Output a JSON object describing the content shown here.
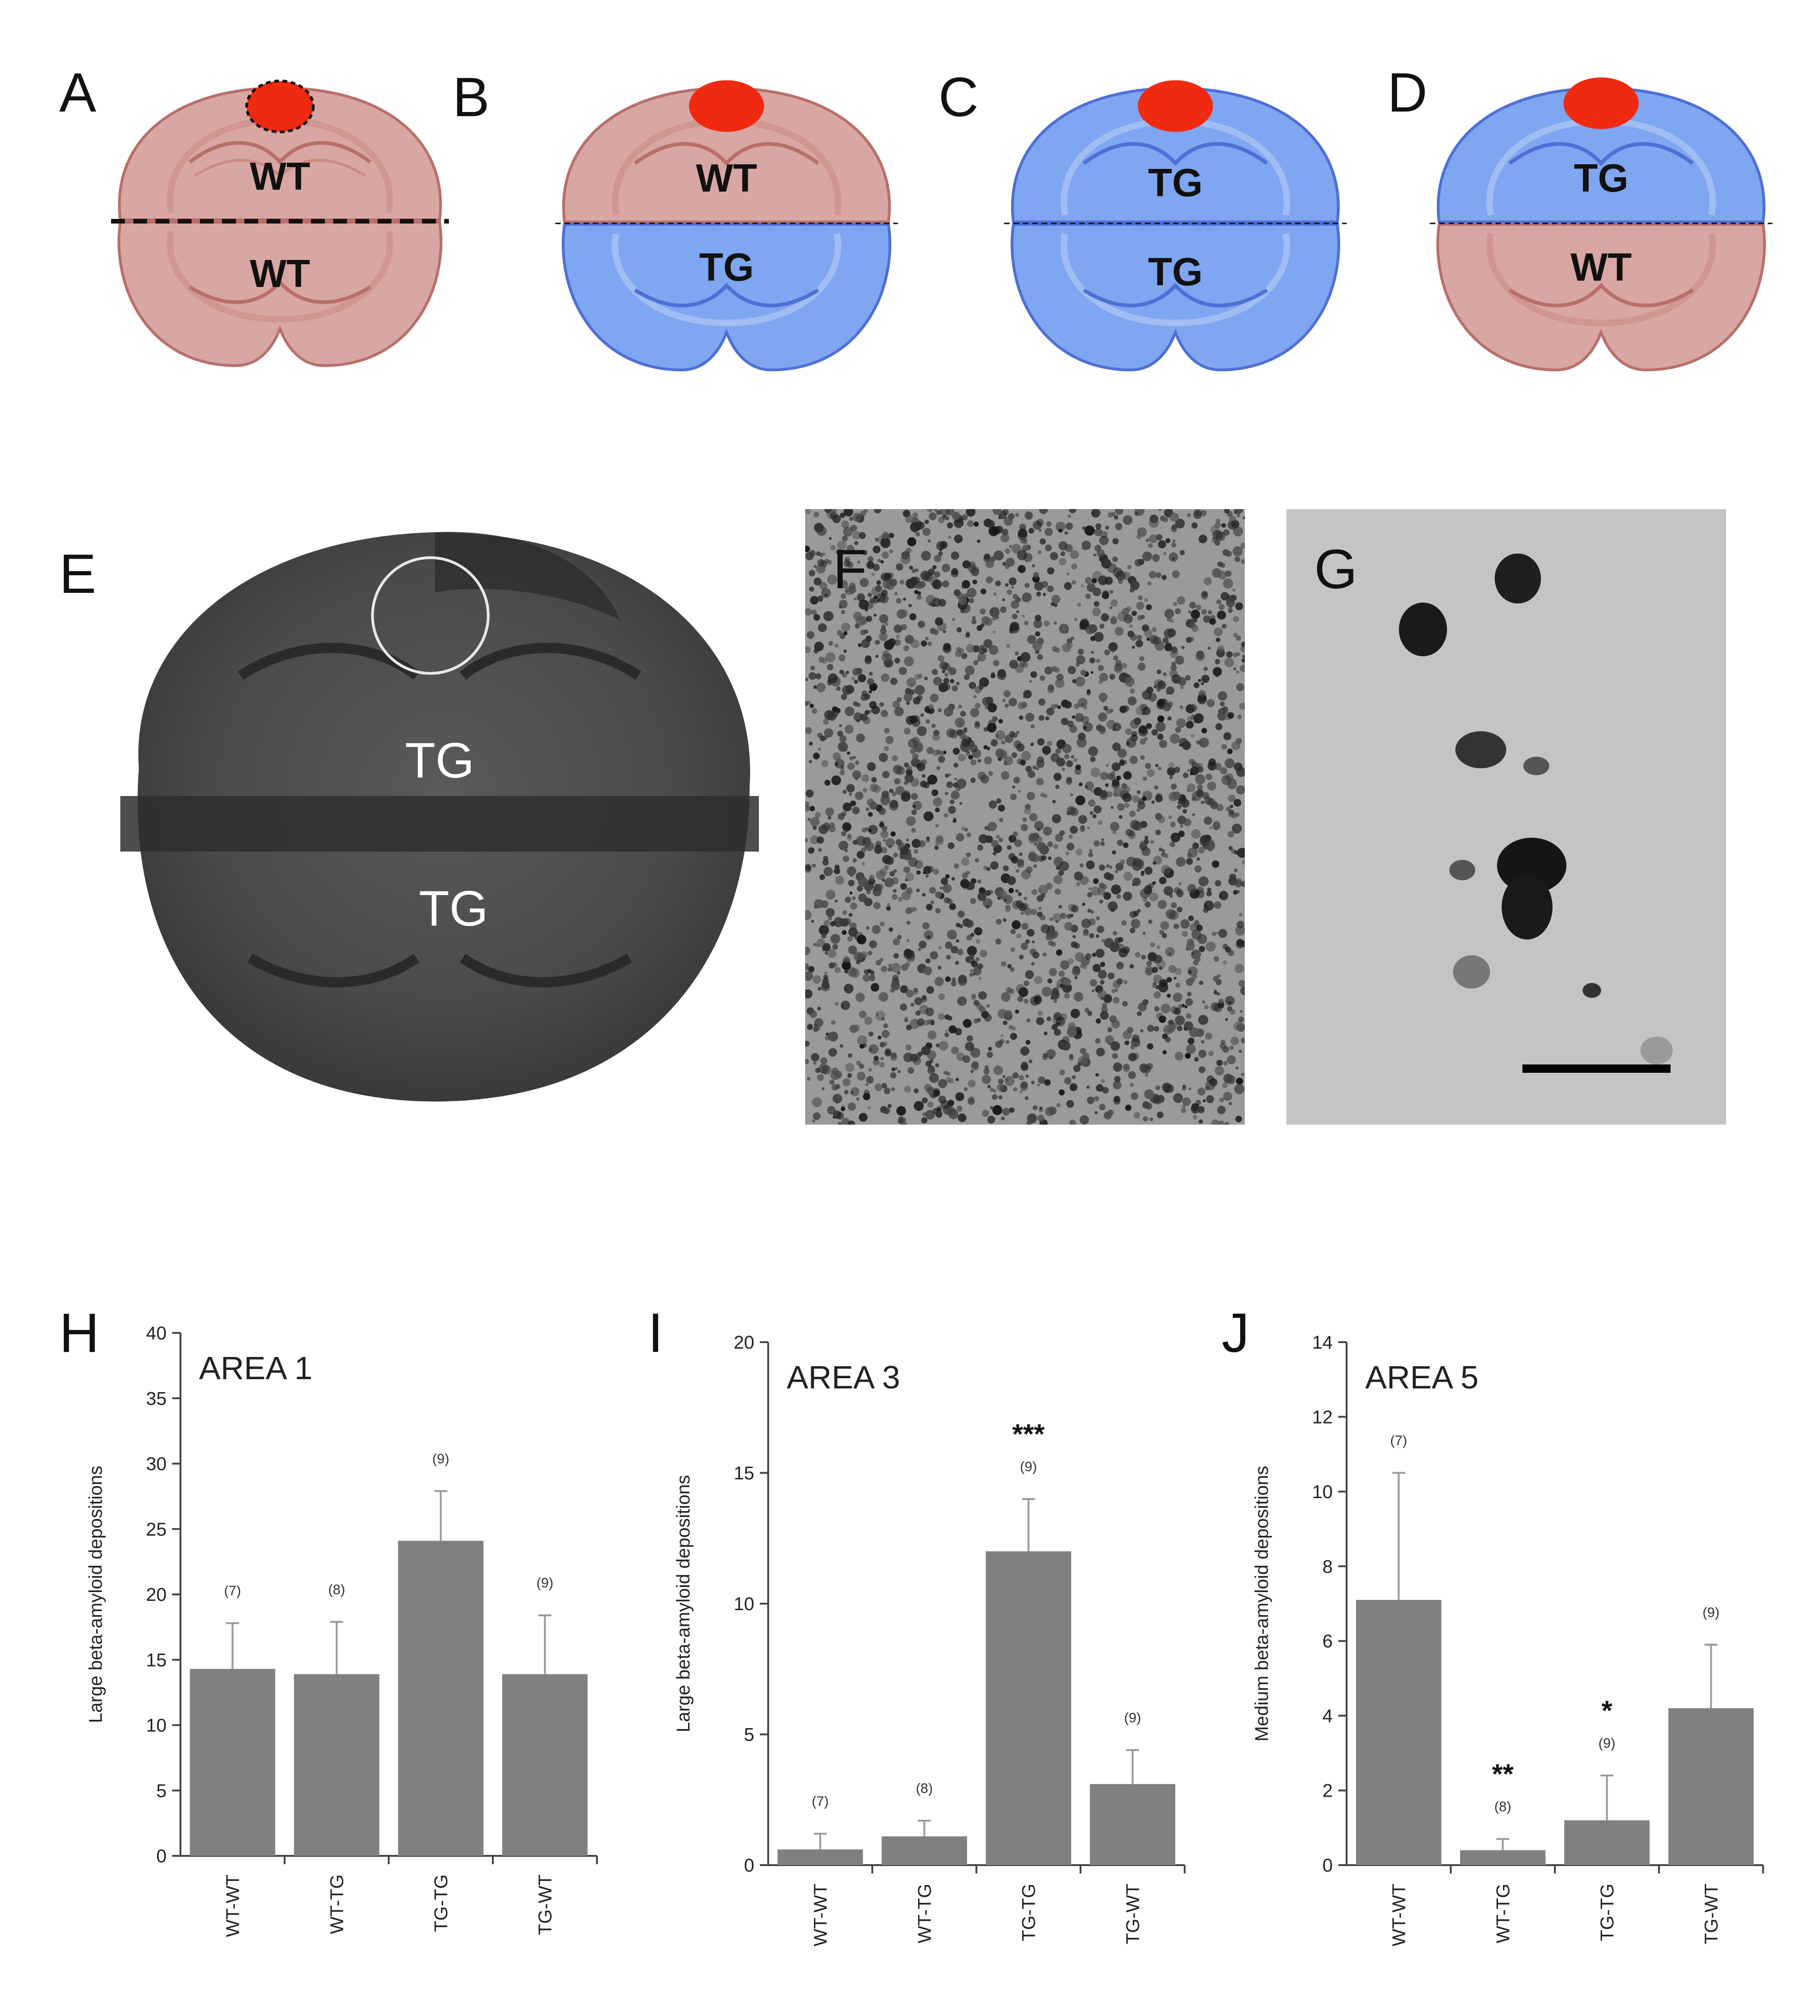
{
  "schematics": [
    {
      "letter": "A",
      "top_label": "WT",
      "bottom_label": "WT",
      "top_color": "#d9a7a3",
      "bottom_color": "#d9a7a3",
      "marker_dotted": true
    },
    {
      "letter": "B",
      "top_label": "WT",
      "bottom_label": "TG",
      "top_color": "#d9a7a3",
      "bottom_color": "#7fa6f0",
      "marker_dotted": false
    },
    {
      "letter": "C",
      "top_label": "TG",
      "bottom_label": "TG",
      "top_color": "#7fa6f0",
      "bottom_color": "#7fa6f0",
      "marker_dotted": false
    },
    {
      "letter": "D",
      "top_label": "TG",
      "bottom_label": "WT",
      "top_color": "#7fa6f0",
      "bottom_color": "#d9a7a3",
      "marker_dotted": false
    }
  ],
  "colors": {
    "wt_tissue": "#d9a7a3",
    "tg_tissue": "#7fa6f0",
    "injection_site": "#f02a10",
    "bar_fill": "#808080"
  },
  "micrographs": {
    "E": {
      "letter": "E",
      "top_label": "TG",
      "bottom_label": "TG"
    },
    "F": {
      "letter": "F"
    },
    "G": {
      "letter": "G"
    }
  },
  "chart_data": [
    {
      "letter": "H",
      "type": "bar",
      "title": "AREA 1",
      "ylabel": "Large beta-amyloid depositions",
      "ylim": [
        0,
        40
      ],
      "yticks": [
        0,
        5,
        10,
        15,
        20,
        25,
        30,
        35,
        40
      ],
      "categories": [
        "WT-WT",
        "WT-TG",
        "TG-TG",
        "TG-WT"
      ],
      "values": [
        14.3,
        13.9,
        24.1,
        13.9
      ],
      "errors": [
        3.5,
        4.0,
        3.8,
        4.5
      ],
      "n_labels": [
        "(7)",
        "(8)",
        "(9)",
        "(9)"
      ],
      "significance": [
        "",
        "",
        "",
        ""
      ]
    },
    {
      "letter": "I",
      "type": "bar",
      "title": "AREA 3",
      "ylabel": "Large beta-amyloid depositions",
      "ylim": [
        0,
        20
      ],
      "yticks": [
        0,
        5,
        10,
        15,
        20
      ],
      "categories": [
        "WT-WT",
        "WT-TG",
        "TG-TG",
        "TG-WT"
      ],
      "values": [
        0.6,
        1.1,
        12.0,
        3.1
      ],
      "errors": [
        0.6,
        0.6,
        2.0,
        1.3
      ],
      "n_labels": [
        "(7)",
        "(8)",
        "(9)",
        "(9)"
      ],
      "significance": [
        "",
        "",
        "***",
        ""
      ]
    },
    {
      "letter": "J",
      "type": "bar",
      "title": "AREA 5",
      "ylabel": "Medium beta-amyloid depositions",
      "ylim": [
        0,
        14
      ],
      "yticks": [
        0,
        2,
        4,
        6,
        8,
        10,
        12,
        14
      ],
      "categories": [
        "WT-WT",
        "WT-TG",
        "TG-TG",
        "TG-WT"
      ],
      "values": [
        7.1,
        0.4,
        1.2,
        4.2
      ],
      "errors": [
        3.4,
        0.3,
        1.2,
        1.7
      ],
      "n_labels": [
        "(7)",
        "(8)",
        "(9)",
        "(9)"
      ],
      "significance": [
        "",
        "**",
        "*",
        ""
      ]
    }
  ]
}
